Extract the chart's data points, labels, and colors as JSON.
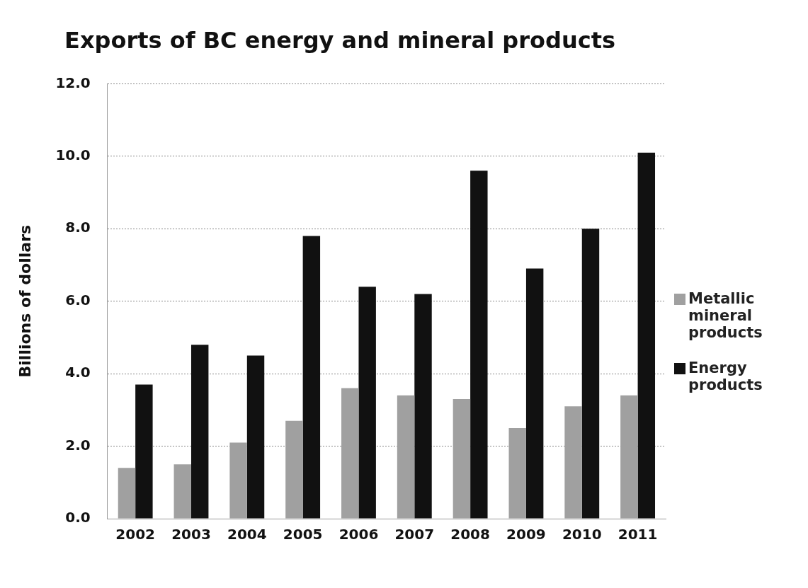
{
  "chart_data": {
    "type": "bar",
    "title": "Exports of BC energy and mineral products",
    "ylabel": "Billions of dollars",
    "categories": [
      "2002",
      "2003",
      "2004",
      "2005",
      "2006",
      "2007",
      "2008",
      "2009",
      "2010",
      "2011"
    ],
    "series": [
      {
        "name": "Metallic mineral products",
        "color": "#a0a0a0",
        "values": [
          1.4,
          1.5,
          2.1,
          2.7,
          3.6,
          3.4,
          3.3,
          2.5,
          3.1,
          3.4
        ]
      },
      {
        "name": "Energy products",
        "color": "#111111",
        "values": [
          3.7,
          4.8,
          4.5,
          7.8,
          6.4,
          6.2,
          9.6,
          6.9,
          8.0,
          10.1
        ]
      }
    ],
    "ylim": [
      0,
      12
    ],
    "yticks": [
      {
        "value": 0,
        "label": "0.0"
      },
      {
        "value": 2,
        "label": "2.0"
      },
      {
        "value": 4,
        "label": "4.0"
      },
      {
        "value": 6,
        "label": "6.0"
      },
      {
        "value": 8,
        "label": "8.0"
      },
      {
        "value": 10,
        "label": "10.0"
      },
      {
        "value": 12,
        "label": "12.0"
      }
    ],
    "grid": "y",
    "legend": "right"
  }
}
